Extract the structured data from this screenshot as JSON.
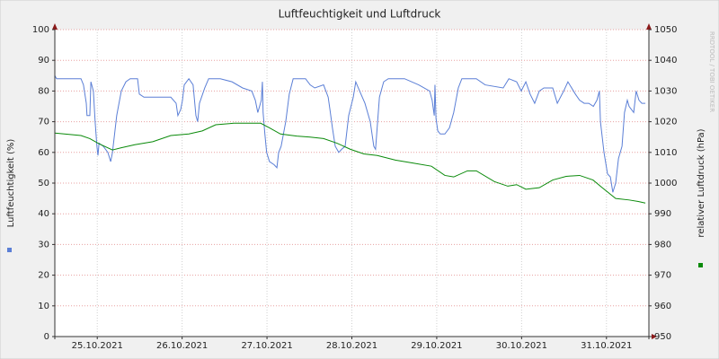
{
  "chart_data": {
    "type": "line",
    "title": "Luftfeuchtigkeit und Luftdruck",
    "y_label": "Luftfeuchtigkeit (%)",
    "y2_label": "relativer Luftdruck (hPa)",
    "watermark": "RRDTOOL / TOBI OETIKER",
    "xlim": [
      0,
      168
    ],
    "xticks": [
      {
        "value": 12,
        "label": "25.10.2021"
      },
      {
        "value": 36,
        "label": "26.10.2021"
      },
      {
        "value": 60,
        "label": "27.10.2021"
      },
      {
        "value": 84,
        "label": "28.10.2021"
      },
      {
        "value": 108,
        "label": "29.10.2021"
      },
      {
        "value": 132,
        "label": "30.10.2021"
      },
      {
        "value": 156,
        "label": "31.10.2021"
      }
    ],
    "ylim": [
      0,
      100
    ],
    "yticks": [
      0,
      10,
      20,
      30,
      40,
      50,
      60,
      70,
      80,
      90,
      100
    ],
    "y2lim": [
      950,
      1050
    ],
    "y2ticks": [
      950,
      960,
      970,
      980,
      990,
      1000,
      1010,
      1020,
      1030,
      1040,
      1050
    ],
    "grid": true,
    "series": [
      {
        "color": "#5b7fd6",
        "axis": "y",
        "x": [
          0,
          0.5,
          7.4,
          8.1,
          8.9,
          9.1,
          9.9,
          10.2,
          10.9,
          11.4,
          11.9,
          12.2,
          12.5,
          13.7,
          15,
          15.8,
          16.3,
          17.5,
          18.8,
          20.1,
          21.3,
          23.4,
          23.9,
          25.2,
          27.7,
          32.8,
          34.3,
          34.8,
          35.6,
          36.1,
          36.6,
          37.9,
          39.1,
          39.9,
          40.4,
          40.9,
          42.4,
          43.5,
          46.8,
          50.1,
          53.1,
          55.7,
          56.7,
          57.4,
          58.4,
          58.7,
          58.9,
          59.4,
          59.9,
          60.7,
          62,
          62.8,
          63.3,
          64,
          65.3,
          66.3,
          67.4,
          70.9,
          72.2,
          73.5,
          76,
          77.3,
          77.8,
          78.5,
          79.3,
          80.3,
          81.1,
          82.1,
          83.1,
          84.4,
          85.1,
          86.2,
          87.7,
          89.2,
          90.2,
          90.7,
          91.8,
          93,
          94.3,
          98.9,
          102.9,
          106,
          106.7,
          107.3,
          107.5,
          107.8,
          108.3,
          109,
          110.3,
          111.6,
          112.8,
          114.1,
          115.1,
          119.2,
          121.7,
          126.8,
          128.4,
          130.6,
          131.9,
          133.2,
          134.4,
          135.7,
          137,
          138.3,
          140.8,
          142.1,
          143.9,
          145.1,
          147.2,
          148.4,
          149.7,
          151,
          152.3,
          153.3,
          154,
          154.3,
          155.3,
          156.3,
          157.1,
          157.8,
          158.6,
          159.4,
          160.4,
          161.1,
          161.9,
          162.4,
          163.7,
          164.4,
          165.2,
          166,
          167
        ],
        "values": [
          85,
          84,
          84,
          82,
          76,
          72,
          72,
          83,
          80,
          70,
          62,
          59,
          63,
          62,
          60,
          57,
          60,
          72,
          80,
          83,
          84,
          84,
          79,
          78,
          78,
          78,
          76,
          72,
          74,
          77,
          82,
          84,
          82,
          72,
          70,
          76,
          81,
          84,
          84,
          83,
          81,
          80,
          77,
          73,
          77,
          83,
          73,
          66,
          60,
          57,
          56,
          55,
          60,
          62,
          70,
          79,
          84,
          84,
          82,
          81,
          82,
          78,
          74,
          68,
          62,
          60,
          61,
          62,
          72,
          78,
          83,
          80,
          76,
          70,
          62,
          61,
          78,
          83,
          84,
          84,
          82,
          80,
          77,
          72,
          82,
          71,
          67,
          66,
          66,
          68,
          73,
          81,
          84,
          84,
          82,
          81,
          84,
          83,
          80,
          83,
          79,
          76,
          80,
          81,
          81,
          76,
          80,
          83,
          79,
          77,
          76,
          76,
          75,
          77,
          80,
          70,
          60,
          53,
          52,
          47,
          50,
          58,
          62,
          73,
          77,
          75,
          73,
          80,
          77,
          76,
          76
        ]
      },
      {
        "color": "#0a8a0a",
        "axis": "y2",
        "x": [
          0,
          7.4,
          9.9,
          12.5,
          16.3,
          18.8,
          22.6,
          27.7,
          32.8,
          37.9,
          41.7,
          45.5,
          50.6,
          58.2,
          60.7,
          63.8,
          68.4,
          72.2,
          76,
          79.8,
          83.6,
          87.4,
          91.2,
          96.3,
          101.4,
          106.5,
          110.3,
          112.8,
          116.7,
          119.2,
          124.3,
          128.1,
          130.6,
          133.2,
          137,
          140.8,
          144.6,
          148.4,
          152.2,
          154.8,
          158.6,
          162.4,
          165,
          167
        ],
        "values": [
          1016.3,
          1015.5,
          1014.5,
          1012.8,
          1010.8,
          1011.5,
          1012.5,
          1013.5,
          1015.5,
          1016,
          1017,
          1019,
          1019.5,
          1019.5,
          1018,
          1016,
          1015.3,
          1015,
          1014.5,
          1013,
          1011,
          1009.5,
          1009,
          1007.5,
          1006.5,
          1005.5,
          1002.5,
          1002,
          1004,
          1004,
          1000.5,
          999,
          999.5,
          998,
          998.5,
          1001,
          1002.2,
          1002.5,
          1001,
          998.5,
          995,
          994.5,
          994,
          993.5
        ]
      }
    ]
  }
}
